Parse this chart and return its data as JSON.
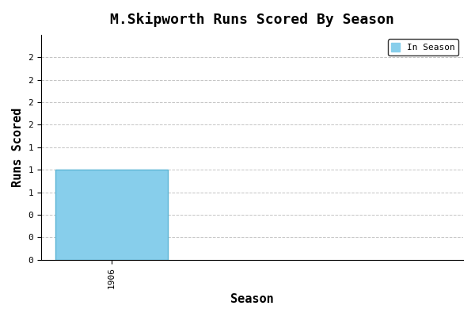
{
  "title": "M.Skipworth Runs Scored By Season",
  "xlabel": "Season",
  "ylabel": "Runs Scored",
  "seasons": [
    1906
  ],
  "values": [
    1
  ],
  "bar_color": "#87CEEB",
  "bar_edge_color": "#5ab4d4",
  "xlim": [
    1905.5,
    1908.5
  ],
  "ylim": [
    0,
    2.5
  ],
  "ytick_positions": [
    0,
    0.25,
    0.5,
    0.75,
    1.0,
    1.25,
    1.5,
    1.75,
    2.0,
    2.25
  ],
  "ytick_labels": [
    "0",
    "0",
    "0",
    "1",
    "1",
    "1",
    "2",
    "2",
    "2",
    "2"
  ],
  "grid_color": "#aaaaaa",
  "background_color": "#ffffff",
  "title_fontsize": 13,
  "axis_label_fontsize": 11,
  "tick_fontsize": 8,
  "legend_label": "In Season",
  "legend_color": "#87CEEB",
  "bar_width": 0.8
}
